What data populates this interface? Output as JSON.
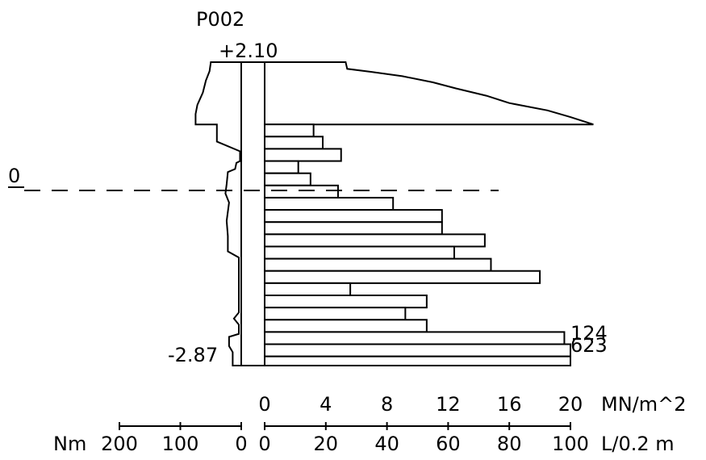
{
  "chart_data": {
    "type": "bar",
    "title": "P002",
    "top_level_label": "+2.10",
    "bottom_level_label": "-2.87",
    "zero_level_label": "0",
    "colors": {
      "ink": "#000000",
      "background": "#ffffff"
    },
    "levels": {
      "top": 2.1,
      "bottom": -2.87
    },
    "pressure_axis": {
      "unit": "MN/m^2",
      "ticks": [
        "0",
        "4",
        "8",
        "12",
        "16",
        "20"
      ],
      "range": [
        0,
        20
      ]
    },
    "water_axis": {
      "unit": "L/0.2 m",
      "ticks": [
        "0",
        "20",
        "40",
        "60",
        "80",
        "100"
      ],
      "range": [
        0,
        100
      ]
    },
    "torque_axis": {
      "unit": "Nm",
      "ticks": [
        "200",
        "100",
        "0"
      ],
      "range": [
        200,
        0
      ]
    },
    "water_loss_bars": [
      {
        "top": 1.08,
        "bottom": 0.88,
        "value": 16.0
      },
      {
        "top": 0.88,
        "bottom": 0.68,
        "value": 19.0
      },
      {
        "top": 0.68,
        "bottom": 0.48,
        "value": 25.0
      },
      {
        "top": 0.48,
        "bottom": 0.28,
        "value": 11.0
      },
      {
        "top": 0.28,
        "bottom": 0.08,
        "value": 15.0
      },
      {
        "top": 0.08,
        "bottom": -0.12,
        "value": 24.0
      },
      {
        "top": -0.12,
        "bottom": -0.32,
        "value": 42.0
      },
      {
        "top": -0.32,
        "bottom": -0.52,
        "value": 58.0
      },
      {
        "top": -0.52,
        "bottom": -0.72,
        "value": 58.0
      },
      {
        "top": -0.72,
        "bottom": -0.92,
        "value": 72.0
      },
      {
        "top": -0.92,
        "bottom": -1.12,
        "value": 62.0
      },
      {
        "top": -1.12,
        "bottom": -1.32,
        "value": 74.0
      },
      {
        "top": -1.32,
        "bottom": -1.52,
        "value": 90.0
      },
      {
        "top": -1.52,
        "bottom": -1.72,
        "value": 28.0
      },
      {
        "top": -1.72,
        "bottom": -1.92,
        "value": 53.0
      },
      {
        "top": -1.92,
        "bottom": -2.12,
        "value": 46.0
      },
      {
        "top": -2.12,
        "bottom": -2.32,
        "value": 53.0
      },
      {
        "top": -2.32,
        "bottom": -2.52,
        "value": 98.0,
        "label": "124"
      },
      {
        "top": -2.52,
        "bottom": -2.72,
        "value": 100.0,
        "label": "623"
      },
      {
        "top": -2.72,
        "bottom": -2.87,
        "value": 100.0
      }
    ],
    "pressure_profile": [
      [
        2.1,
        0.0
      ],
      [
        2.1,
        5.3
      ],
      [
        1.99,
        5.4
      ],
      [
        1.94,
        7.0
      ],
      [
        1.87,
        9.0
      ],
      [
        1.77,
        11.0
      ],
      [
        1.67,
        12.5
      ],
      [
        1.55,
        14.5
      ],
      [
        1.43,
        16.0
      ],
      [
        1.31,
        18.5
      ],
      [
        1.2,
        20.0
      ],
      [
        1.08,
        21.5
      ],
      [
        1.08,
        0.0
      ]
    ],
    "torque_profile": [
      [
        2.1,
        0
      ],
      [
        2.1,
        50
      ],
      [
        1.95,
        52
      ],
      [
        1.8,
        58
      ],
      [
        1.6,
        63
      ],
      [
        1.4,
        72
      ],
      [
        1.25,
        75
      ],
      [
        1.08,
        75
      ],
      [
        1.08,
        40
      ],
      [
        0.8,
        40
      ],
      [
        0.64,
        2
      ],
      [
        0.48,
        2
      ],
      [
        0.45,
        8
      ],
      [
        0.35,
        10
      ],
      [
        0.3,
        22
      ],
      [
        0.1,
        24
      ],
      [
        -0.05,
        26
      ],
      [
        -0.2,
        20
      ],
      [
        -0.5,
        24
      ],
      [
        -0.75,
        22
      ],
      [
        -1.0,
        22
      ],
      [
        -1.1,
        4
      ],
      [
        -2.0,
        4
      ],
      [
        -2.1,
        12
      ],
      [
        -2.2,
        4
      ],
      [
        -2.35,
        4
      ],
      [
        -2.4,
        20
      ],
      [
        -2.55,
        20
      ],
      [
        -2.65,
        14
      ],
      [
        -2.87,
        14
      ],
      [
        -2.87,
        0
      ]
    ]
  }
}
